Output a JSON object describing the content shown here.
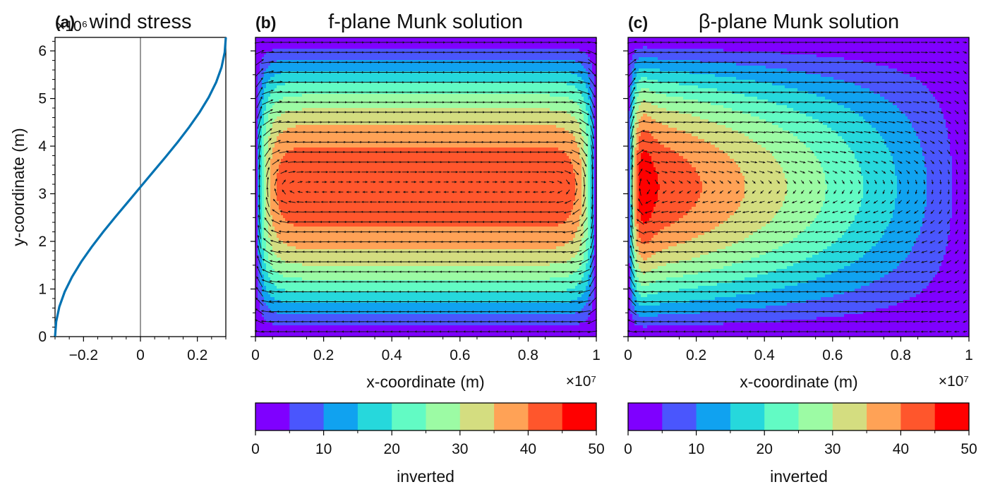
{
  "figure": {
    "panel_a": {
      "letter": "(a)",
      "title": "wind stress",
      "offset": "×10⁶"
    },
    "panel_b": {
      "letter": "(b)",
      "title": "f-plane Munk solution",
      "offset": "×10⁷"
    },
    "panel_c": {
      "letter": "(c)",
      "title": "β-plane Munk solution",
      "offset": "×10⁷"
    },
    "colorbar_b_label": "inverted",
    "colorbar_c_label": "inverted"
  },
  "chart_data": [
    {
      "type": "line",
      "panel": "a",
      "title": "wind stress",
      "xlabel": "",
      "ylabel": "y-coordinate (m)",
      "y_offset_label": "×10⁶",
      "xlim": [
        -0.3,
        0.3
      ],
      "ylim": [
        0,
        6.283
      ],
      "xticks": [
        -0.2,
        0,
        0.2
      ],
      "xtick_labels": [
        "−0.2",
        "0",
        "0.2"
      ],
      "yticks": [
        0,
        1,
        2,
        3,
        4,
        5,
        6
      ],
      "ytick_labels": [
        "0",
        "1",
        "2",
        "3",
        "4",
        "5",
        "6"
      ],
      "vertical_reference_line_x": 0,
      "series": [
        {
          "color": "#0072b2",
          "x": [
            -0.3,
            -0.296,
            -0.285,
            -0.266,
            -0.24,
            -0.208,
            -0.171,
            -0.131,
            -0.088,
            -0.044,
            0.0,
            0.044,
            0.088,
            0.131,
            0.171,
            0.208,
            0.24,
            0.266,
            0.285,
            0.296,
            0.3
          ],
          "y": [
            0.0,
            0.314,
            0.628,
            0.942,
            1.257,
            1.571,
            1.885,
            2.199,
            2.513,
            2.827,
            3.142,
            3.456,
            3.77,
            4.084,
            4.398,
            4.712,
            5.027,
            5.341,
            5.655,
            5.969,
            6.283
          ]
        }
      ],
      "grid": false,
      "legend": "none"
    },
    {
      "type": "heatmap",
      "panel": "b",
      "title": "f-plane Munk solution",
      "xlabel": "x-coordinate (m)",
      "ylabel": "",
      "x_offset_label": "×10⁷",
      "xlim": [
        0,
        1
      ],
      "ylim": [
        0,
        6.283
      ],
      "xticks": [
        0,
        0.2,
        0.4,
        0.6,
        0.8,
        1
      ],
      "xtick_labels": [
        "0",
        "0.2",
        "0.4",
        "0.6",
        "0.8",
        "1"
      ],
      "yticks": [
        0,
        1,
        2,
        3,
        4,
        5,
        6
      ],
      "contour_levels": [
        0,
        5,
        10,
        15,
        20,
        25,
        30,
        35,
        40,
        45,
        50
      ],
      "field": "streamfunction (filled contours) with velocity arrows",
      "max_value_approx": 44,
      "western_boundary_layer": false,
      "colorbar": {
        "label": "inverted",
        "ticks": [
          0,
          10,
          20,
          30,
          40,
          50
        ],
        "tick_labels": [
          "0",
          "10",
          "20",
          "30",
          "40",
          "50"
        ]
      }
    },
    {
      "type": "heatmap",
      "panel": "c",
      "title": "β-plane Munk solution",
      "xlabel": "x-coordinate (m)",
      "ylabel": "",
      "x_offset_label": "×10⁷",
      "xlim": [
        0,
        1
      ],
      "ylim": [
        0,
        6.283
      ],
      "xticks": [
        0,
        0.2,
        0.4,
        0.6,
        0.8,
        1
      ],
      "xtick_labels": [
        "0",
        "0.2",
        "0.4",
        "0.6",
        "0.8",
        "1"
      ],
      "yticks": [
        0,
        1,
        2,
        3,
        4,
        5,
        6
      ],
      "contour_levels": [
        0,
        5,
        10,
        15,
        20,
        25,
        30,
        35,
        40,
        45,
        50
      ],
      "field": "streamfunction (filled contours) with velocity arrows",
      "max_value_approx": 48,
      "western_boundary_layer": true,
      "colorbar": {
        "label": "inverted",
        "ticks": [
          0,
          10,
          20,
          30,
          40,
          50
        ],
        "tick_labels": [
          "0",
          "10",
          "20",
          "30",
          "40",
          "50"
        ]
      }
    }
  ],
  "colormap": [
    "#7f00ff",
    "#4a56fd",
    "#10a2f0",
    "#26d8dc",
    "#62fbc4",
    "#9cfba4",
    "#d4dd80",
    "#ffa256",
    "#ff562c",
    "#ff0000"
  ]
}
